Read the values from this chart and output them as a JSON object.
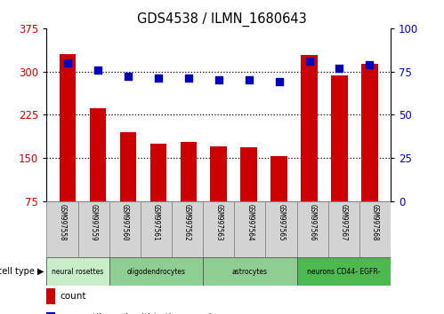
{
  "title": "GDS4538 / ILMN_1680643",
  "samples": [
    "GSM997558",
    "GSM997559",
    "GSM997560",
    "GSM997561",
    "GSM997562",
    "GSM997563",
    "GSM997564",
    "GSM997565",
    "GSM997566",
    "GSM997567",
    "GSM997568"
  ],
  "counts": [
    330,
    236,
    195,
    175,
    178,
    170,
    168,
    153,
    328,
    293,
    313
  ],
  "percentiles": [
    80,
    76,
    72,
    71,
    71,
    70,
    70,
    69,
    81,
    77,
    79
  ],
  "cell_types": [
    {
      "label": "neural rosettes",
      "start": 0,
      "end": 2,
      "color": "#c8edc9"
    },
    {
      "label": "oligodendrocytes",
      "start": 2,
      "end": 5,
      "color": "#8fce92"
    },
    {
      "label": "astrocytes",
      "start": 5,
      "end": 8,
      "color": "#8fce92"
    },
    {
      "label": "neurons CD44- EGFR-",
      "start": 8,
      "end": 11,
      "color": "#4db84e"
    }
  ],
  "left_ylim": [
    75,
    375
  ],
  "left_yticks": [
    75,
    150,
    225,
    300,
    375
  ],
  "right_ylim": [
    0,
    100
  ],
  "right_yticks": [
    0,
    25,
    50,
    75,
    100
  ],
  "bar_color": "#cc0000",
  "dot_color": "#0000bb",
  "bg_color": "#ffffff",
  "plot_bg": "#ffffff",
  "grid_color": "#000000",
  "tick_label_color_left": "#cc0000",
  "tick_label_color_right": "#0000bb",
  "cell_type_colors": [
    "#c8edc9",
    "#8fce92",
    "#8fce92",
    "#4db84e"
  ]
}
